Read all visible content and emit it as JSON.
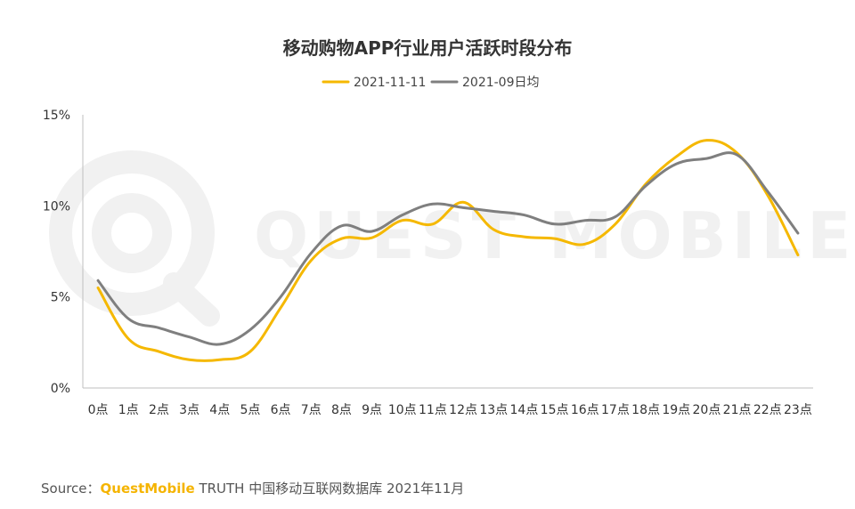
{
  "chart_data": {
    "type": "line",
    "title": "移动购物APP行业用户活跃时段分布",
    "categories": [
      "0点",
      "1点",
      "2点",
      "3点",
      "4点",
      "5点",
      "6点",
      "7点",
      "8点",
      "9点",
      "10点",
      "11点",
      "12点",
      "13点",
      "14点",
      "15点",
      "16点",
      "17点",
      "18点",
      "19点",
      "20点",
      "21点",
      "22点",
      "23点"
    ],
    "series": [
      {
        "name": "2021-11-11",
        "color": "#f5b800",
        "values": [
          5.5,
          2.7,
          2.0,
          1.55,
          1.55,
          2.0,
          4.4,
          7.0,
          8.2,
          8.25,
          9.2,
          9.0,
          10.2,
          8.7,
          8.3,
          8.2,
          7.9,
          9.0,
          11.2,
          12.7,
          13.6,
          12.9,
          10.6,
          7.3
        ]
      },
      {
        "name": "2021-09日均",
        "color": "#7f7f7f",
        "values": [
          5.9,
          3.8,
          3.3,
          2.8,
          2.4,
          3.2,
          5.0,
          7.4,
          8.9,
          8.6,
          9.5,
          10.1,
          9.9,
          9.7,
          9.5,
          9.0,
          9.2,
          9.4,
          11.1,
          12.3,
          12.6,
          12.8,
          10.8,
          8.5
        ]
      }
    ],
    "ylim": [
      0,
      15
    ],
    "yticks": [
      {
        "v": 0,
        "label": "0%"
      },
      {
        "v": 5,
        "label": "5%"
      },
      {
        "v": 10,
        "label": "10%"
      },
      {
        "v": 15,
        "label": "15%"
      }
    ],
    "grid": false,
    "legend_position": "top-center"
  },
  "watermark": "QUEST MOBILE",
  "source": {
    "prefix": "Source：",
    "brand": "QuestMobile",
    "rest": " TRUTH 中国移动互联网数据库 2021年11月"
  }
}
